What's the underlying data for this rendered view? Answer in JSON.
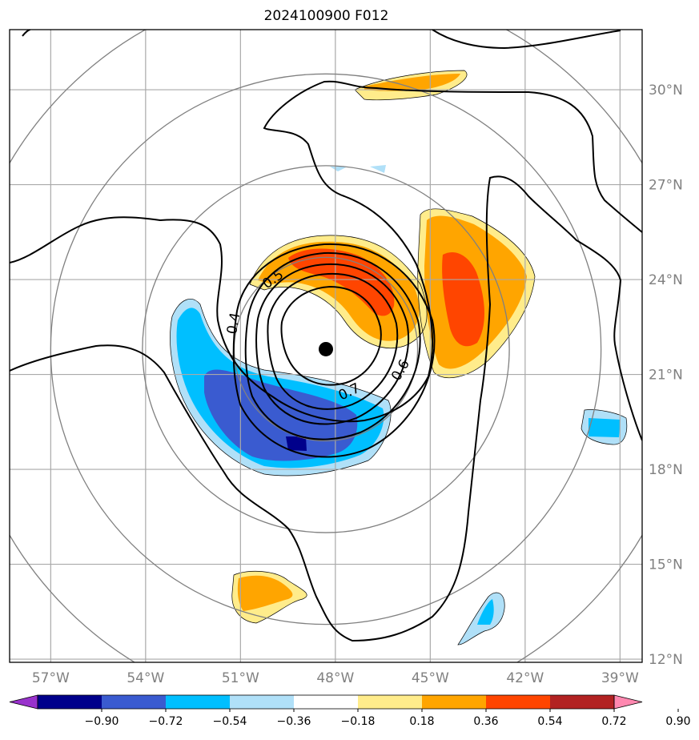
{
  "title": "2024100900 F012",
  "map": {
    "lon_labels": [
      {
        "lon": -57,
        "label": "57°W"
      },
      {
        "lon": -54,
        "label": "54°W"
      },
      {
        "lon": -51,
        "label": "51°W"
      },
      {
        "lon": -48,
        "label": "48°W"
      },
      {
        "lon": -45,
        "label": "45°W"
      },
      {
        "lon": -42,
        "label": "42°W"
      },
      {
        "lon": -39,
        "label": "39°W"
      }
    ],
    "lat_labels": [
      {
        "lat": 30,
        "label": "30°N"
      },
      {
        "lat": 27,
        "label": "27°N"
      },
      {
        "lat": 24,
        "label": "24°N"
      },
      {
        "lat": 21,
        "label": "21°N"
      },
      {
        "lat": 18,
        "label": "18°N"
      },
      {
        "lat": 15,
        "label": "15°N"
      },
      {
        "lat": 12,
        "label": "12°N"
      }
    ],
    "lon_range": [
      -58.3,
      -38.3
    ],
    "lat_range": [
      11.9,
      31.9
    ],
    "storm_center": {
      "lon": -48.3,
      "lat": 21.8
    },
    "range_ring_spacing_deg": 2.9,
    "contour_labels": [
      "0.4",
      "0.5",
      "0.6",
      "0.7"
    ],
    "gridline_color": "#a9a9a9",
    "ring_color": "#808080"
  },
  "colorbar": {
    "labels": [
      "−0.90",
      "−0.72",
      "−0.54",
      "−0.36",
      "−0.18",
      "0.18",
      "0.36",
      "0.54",
      "0.72",
      "0.90"
    ],
    "colors": [
      "#9932cc",
      "#00008b",
      "#3a5bd0",
      "#00bfff",
      "#b0e0f8",
      "#ffffff",
      "#ffec8b",
      "#ffa500",
      "#ff4500",
      "#b22222",
      "#ff88b0"
    ]
  }
}
